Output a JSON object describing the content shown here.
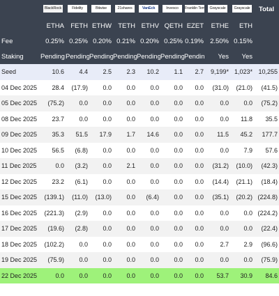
{
  "chart_data": {
    "type": "table",
    "columns": [
      "ETHA",
      "FETH",
      "ETHW",
      "TETH",
      "ETHV",
      "QETH",
      "EZET",
      "ETHE",
      "ETH",
      "Total"
    ],
    "issuer_logos": [
      "BlackRock",
      "Fidelity",
      "Bitwise",
      "21shares",
      "VanEck",
      "Invesco",
      "Franklin Templeton",
      "Grayscale",
      "Grayscale"
    ],
    "total_label": "Total",
    "fee_label": "Fee",
    "fees": [
      "0.25%",
      "0.25%",
      "0.20%",
      "0.21%",
      "0.20%",
      "0.25%",
      "0.19%",
      "2.50%",
      "0.15%",
      ""
    ],
    "staking_label": "Staking",
    "staking": [
      "Pending",
      "Pending",
      "Pending",
      "Pending",
      "Pending",
      "Pending",
      "Pending",
      "Yes",
      "Yes",
      ""
    ],
    "rows": [
      {
        "label": "Seed",
        "values": [
          "10.6",
          "4.4",
          "2.5",
          "2.3",
          "10.2",
          "1.1",
          "2.7",
          "9,199*",
          "1,023*",
          "10,255"
        ]
      },
      {
        "label": "04 Dec 2025",
        "values": [
          "28.4",
          "(17.9)",
          "0.0",
          "0.0",
          "0.0",
          "0.0",
          "0.0",
          "(31.0)",
          "(21.0)",
          "(41.5)"
        ]
      },
      {
        "label": "05 Dec 2025",
        "values": [
          "(75.2)",
          "0.0",
          "0.0",
          "0.0",
          "0.0",
          "0.0",
          "0.0",
          "0.0",
          "0.0",
          "(75.2)"
        ]
      },
      {
        "label": "08 Dec 2025",
        "values": [
          "23.7",
          "0.0",
          "0.0",
          "0.0",
          "0.0",
          "0.0",
          "0.0",
          "0.0",
          "11.8",
          "35.5"
        ]
      },
      {
        "label": "09 Dec 2025",
        "values": [
          "35.3",
          "51.5",
          "17.9",
          "1.7",
          "14.6",
          "0.0",
          "0.0",
          "11.5",
          "45.2",
          "177.7"
        ]
      },
      {
        "label": "10 Dec 2025",
        "values": [
          "56.5",
          "(6.8)",
          "0.0",
          "0.0",
          "0.0",
          "0.0",
          "0.0",
          "0.0",
          "7.9",
          "57.6"
        ]
      },
      {
        "label": "11 Dec 2025",
        "values": [
          "0.0",
          "(3.2)",
          "0.0",
          "2.1",
          "0.0",
          "0.0",
          "0.0",
          "(31.2)",
          "(10.0)",
          "(42.3)"
        ]
      },
      {
        "label": "12 Dec 2025",
        "values": [
          "23.2",
          "(6.1)",
          "0.0",
          "0.0",
          "0.0",
          "0.0",
          "0.0",
          "(14.4)",
          "(21.1)",
          "(18.4)"
        ]
      },
      {
        "label": "15 Dec 2025",
        "values": [
          "(139.1)",
          "(11.0)",
          "(13.0)",
          "0.0",
          "(6.4)",
          "0.0",
          "0.0",
          "(35.1)",
          "(20.2)",
          "(224.8)"
        ]
      },
      {
        "label": "16 Dec 2025",
        "values": [
          "(221.3)",
          "(2.9)",
          "0.0",
          "0.0",
          "0.0",
          "0.0",
          "0.0",
          "0.0",
          "0.0",
          "(224.2)"
        ]
      },
      {
        "label": "17 Dec 2025",
        "values": [
          "(19.6)",
          "(2.8)",
          "0.0",
          "0.0",
          "0.0",
          "0.0",
          "0.0",
          "0.0",
          "0.0",
          "(22.4)"
        ]
      },
      {
        "label": "18 Dec 2025",
        "values": [
          "(102.2)",
          "0.0",
          "0.0",
          "0.0",
          "0.0",
          "0.0",
          "0.0",
          "2.7",
          "2.9",
          "(96.6)"
        ]
      },
      {
        "label": "19 Dec 2025",
        "values": [
          "(75.9)",
          "0.0",
          "0.0",
          "0.0",
          "0.0",
          "0.0",
          "0.0",
          "0.0",
          "0.0",
          "(75.9)"
        ]
      },
      {
        "label": "22 Dec 2025",
        "values": [
          "0.0",
          "0.0",
          "0.0",
          "0.0",
          "0.0",
          "0.0",
          "0.0",
          "53.7",
          "30.9",
          "84.6"
        ]
      }
    ]
  }
}
